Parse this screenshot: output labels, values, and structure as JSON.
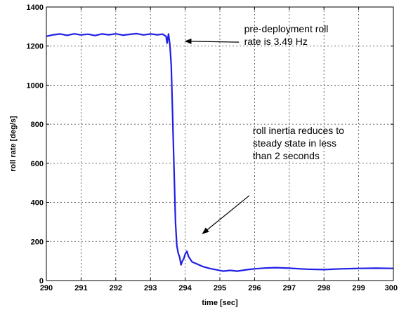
{
  "chart_data": {
    "type": "line",
    "xlabel": "time [sec]",
    "ylabel": "roll rate [deg/s]",
    "xlim": [
      290,
      300
    ],
    "ylim": [
      0,
      1400
    ],
    "x_ticks": [
      290,
      291,
      292,
      293,
      294,
      295,
      296,
      297,
      298,
      299,
      300
    ],
    "y_ticks": [
      0,
      200,
      400,
      600,
      800,
      1000,
      1200,
      1400
    ],
    "grid": true,
    "line_color": "#1f1fe6",
    "series": [
      {
        "points": [
          [
            290.0,
            1250
          ],
          [
            290.2,
            1258
          ],
          [
            290.4,
            1262
          ],
          [
            290.6,
            1255
          ],
          [
            290.8,
            1263
          ],
          [
            291.0,
            1257
          ],
          [
            291.2,
            1261
          ],
          [
            291.4,
            1254
          ],
          [
            291.6,
            1262
          ],
          [
            291.8,
            1258
          ],
          [
            292.0,
            1263
          ],
          [
            292.2,
            1256
          ],
          [
            292.4,
            1260
          ],
          [
            292.6,
            1264
          ],
          [
            292.8,
            1257
          ],
          [
            293.0,
            1262
          ],
          [
            293.2,
            1258
          ],
          [
            293.35,
            1261
          ],
          [
            293.45,
            1250
          ],
          [
            293.48,
            1215
          ],
          [
            293.52,
            1262
          ],
          [
            293.56,
            1205
          ],
          [
            293.6,
            1100
          ],
          [
            293.63,
            900
          ],
          [
            293.66,
            700
          ],
          [
            293.69,
            500
          ],
          [
            293.72,
            300
          ],
          [
            293.76,
            180
          ],
          [
            293.8,
            140
          ],
          [
            293.84,
            120
          ],
          [
            293.88,
            80
          ],
          [
            293.92,
            100
          ],
          [
            293.96,
            112
          ],
          [
            294.0,
            135
          ],
          [
            294.05,
            150
          ],
          [
            294.1,
            122
          ],
          [
            294.2,
            95
          ],
          [
            294.3,
            88
          ],
          [
            294.5,
            72
          ],
          [
            294.7,
            62
          ],
          [
            294.9,
            55
          ],
          [
            295.1,
            48
          ],
          [
            295.3,
            52
          ],
          [
            295.5,
            48
          ],
          [
            295.8,
            56
          ],
          [
            296.0,
            60
          ],
          [
            296.3,
            64
          ],
          [
            296.6,
            66
          ],
          [
            297.0,
            63
          ],
          [
            297.5,
            58
          ],
          [
            298.0,
            56
          ],
          [
            298.5,
            60
          ],
          [
            299.0,
            62
          ],
          [
            299.5,
            63
          ],
          [
            300.0,
            62
          ]
        ]
      }
    ],
    "annotations": [
      {
        "lines": [
          "pre-deployment roll",
          "rate is 3.49 Hz"
        ],
        "text_at": [
          295.7,
          1270
        ],
        "arrow_from": [
          295.55,
          1220
        ],
        "arrow_to": [
          294.0,
          1225
        ]
      },
      {
        "lines": [
          "roll inertia reduces to",
          "steady state in less",
          "than 2 seconds"
        ],
        "text_at": [
          295.95,
          750
        ],
        "arrow_from": [
          295.85,
          435
        ],
        "arrow_to": [
          294.5,
          240
        ]
      }
    ]
  }
}
